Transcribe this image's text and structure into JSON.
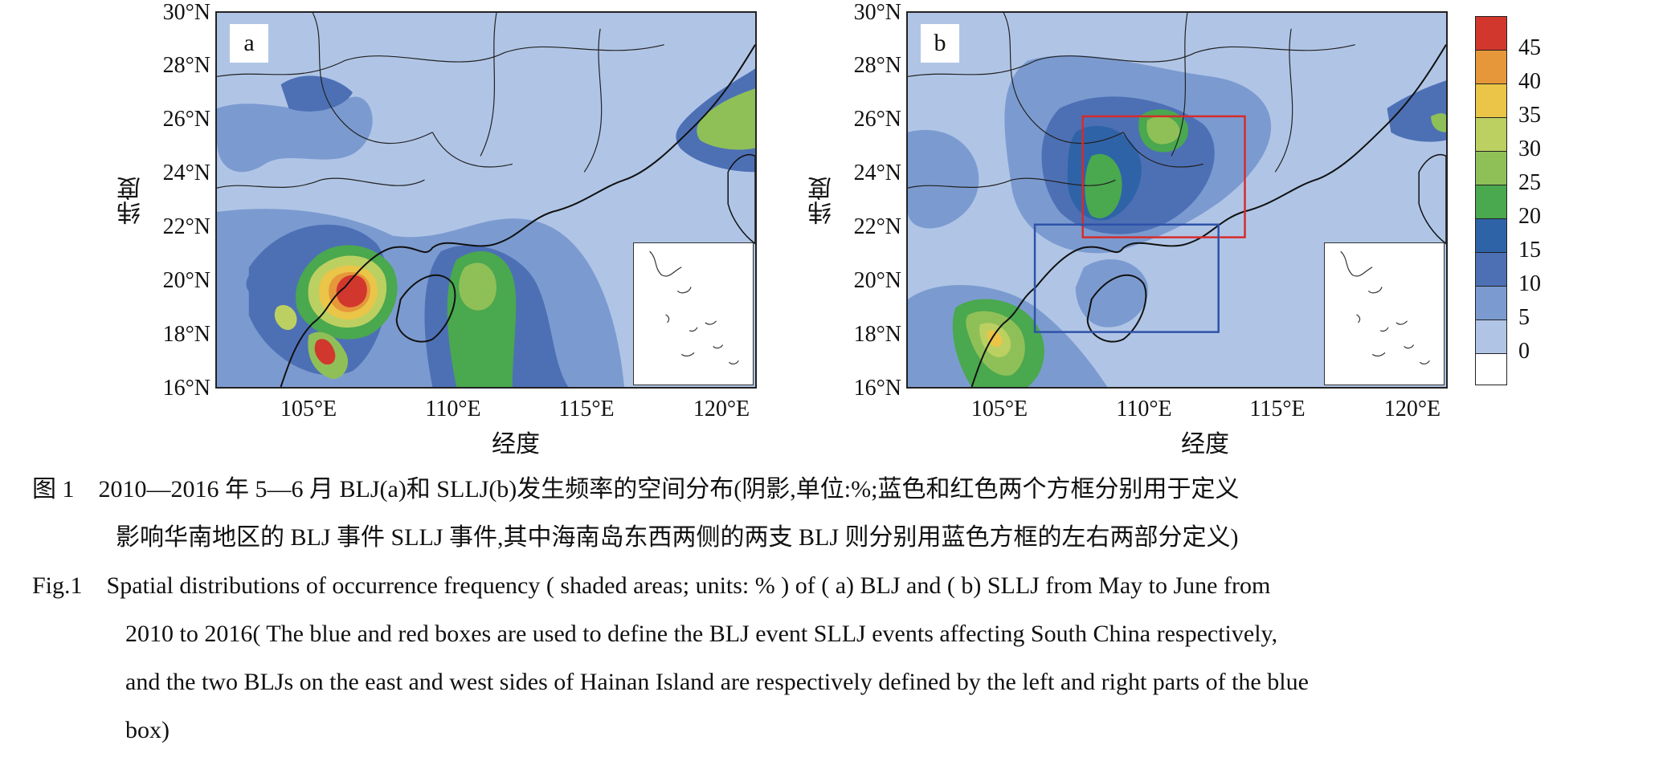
{
  "panels": [
    {
      "id": "a",
      "label": "a"
    },
    {
      "id": "b",
      "label": "b"
    }
  ],
  "axes": {
    "x_ticks": [
      "105°E",
      "110°E",
      "115°E",
      "120°E"
    ],
    "y_ticks": [
      "30°N",
      "28°N",
      "26°N",
      "24°N",
      "22°N",
      "20°N",
      "18°N",
      "16°N"
    ],
    "x_title": "经度",
    "y_title": "纬度"
  },
  "colorbar": {
    "levels": [
      "45",
      "40",
      "35",
      "30",
      "25",
      "20",
      "15",
      "10",
      "5",
      "0"
    ],
    "colors": [
      "#d2372e",
      "#e6973a",
      "#eac548",
      "#bcd062",
      "#8fc058",
      "#4aa84e",
      "#2f63a8",
      "#4d70b5",
      "#7b9bd0",
      "#b0c5e6",
      "#ffffff"
    ]
  },
  "boxes": {
    "red": {
      "lon": [
        108,
        114
      ],
      "lat": [
        21.5,
        26
      ],
      "color": "#d62b2b"
    },
    "blue": {
      "lon": [
        106.2,
        113.0
      ],
      "lat": [
        18,
        22
      ],
      "color": "#2e52a8"
    }
  },
  "caption": {
    "zh_line1": "图 1　2010—2016 年 5—6 月 BLJ(a)和 SLLJ(b)发生频率的空间分布(阴影,单位:%;蓝色和红色两个方框分别用于定义",
    "zh_line2": "影响华南地区的 BLJ 事件 SLLJ 事件,其中海南岛东西两侧的两支 BLJ 则分别用蓝色方框的左右两部分定义)",
    "en_line1": "Fig.1　Spatial distributions of occurrence frequency ( shaded areas; units: % ) of ( a) BLJ and ( b) SLLJ from May to June from",
    "en_line2": "2010 to 2016( The blue and red boxes are used to define the BLJ event SLLJ events affecting South China respectively,",
    "en_line3": "and the two BLJs on the east and west sides of Hainan Island are respectively defined by the left and right parts of the blue",
    "en_line4": "box)"
  }
}
